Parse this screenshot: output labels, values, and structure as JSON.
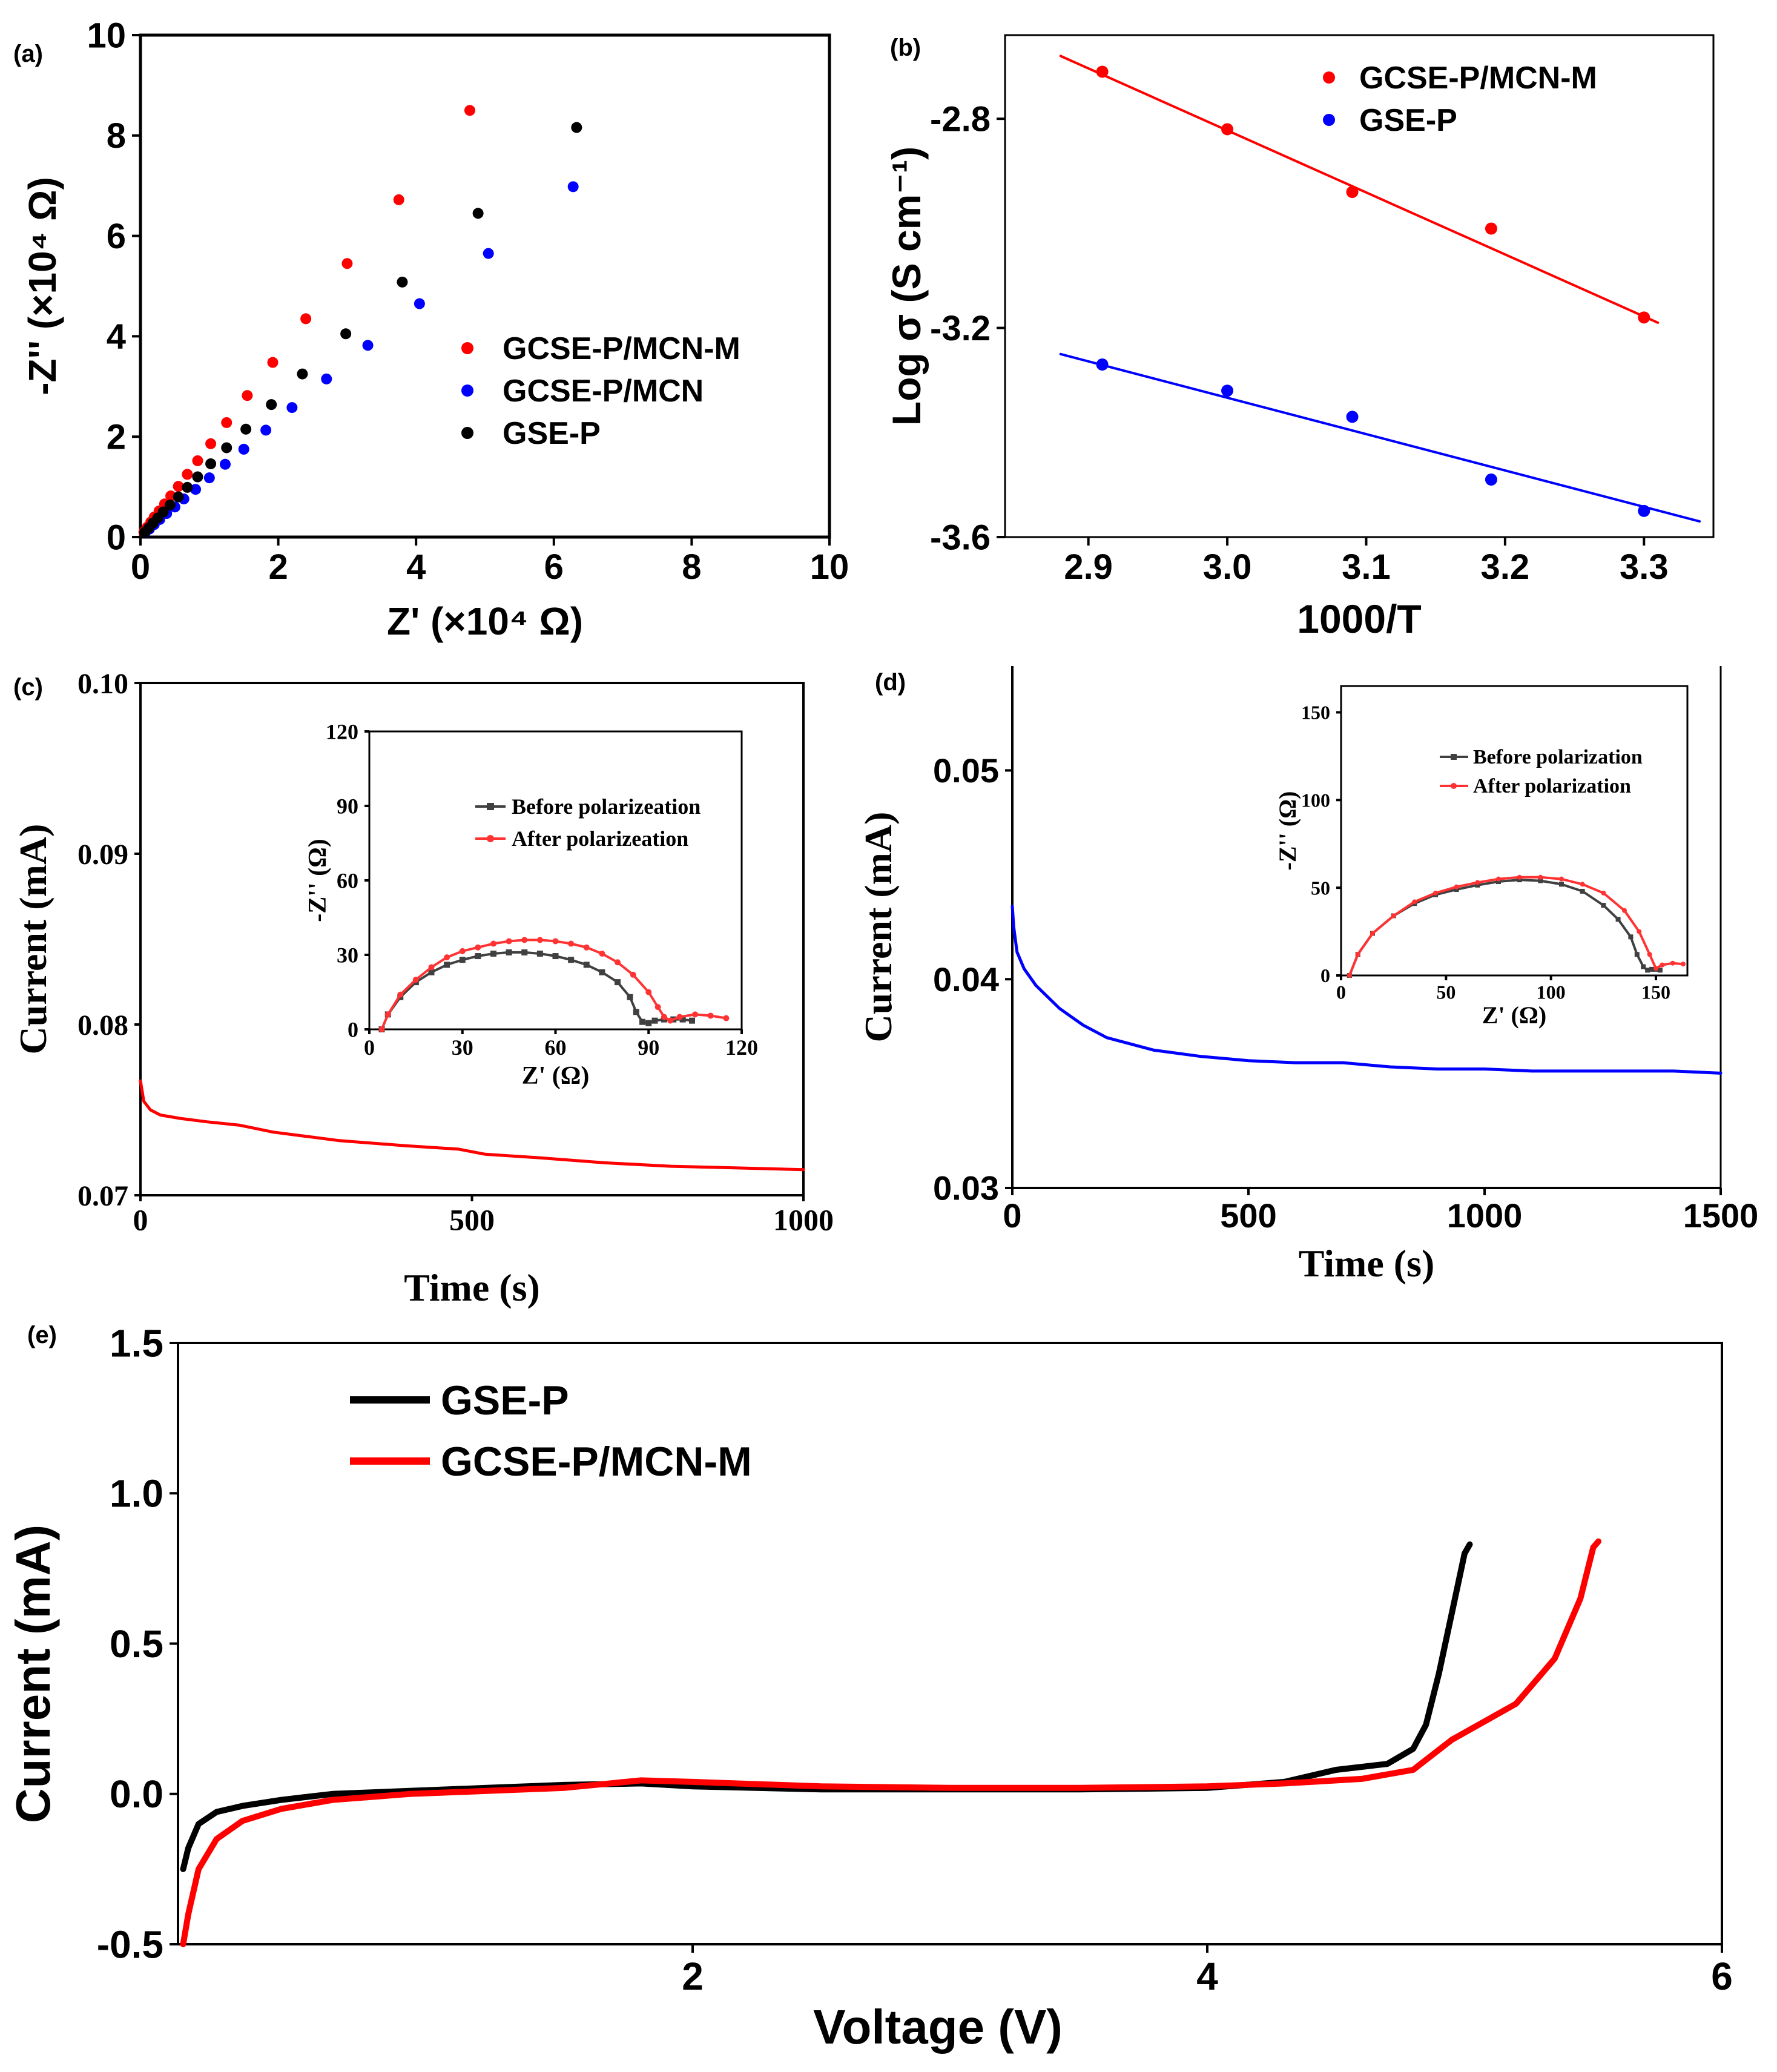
{
  "chart_data": [
    {
      "id": "a",
      "type": "scatter",
      "panel_label": "(a)",
      "xlabel": "Z' (×10⁴ Ω)",
      "ylabel": "-Z'' (×10⁴ Ω)",
      "xlim": [
        0,
        10
      ],
      "ylim": [
        0,
        10
      ],
      "xticks": [
        "0",
        "2",
        "4",
        "6",
        "8",
        "10"
      ],
      "yticks": [
        "0",
        "2",
        "4",
        "6",
        "8",
        "10"
      ],
      "legend": "center-right",
      "series": [
        {
          "name": "GCSE-P/MCN-M",
          "color": "#ff0000",
          "x": [
            0.05,
            0.1,
            0.15,
            0.2,
            0.27,
            0.35,
            0.44,
            0.55,
            0.68,
            0.83,
            1.02,
            1.25,
            1.55,
            1.92,
            2.4,
            3.0,
            3.75,
            4.78
          ],
          "y": [
            0.1,
            0.2,
            0.3,
            0.4,
            0.52,
            0.66,
            0.82,
            1.01,
            1.25,
            1.52,
            1.86,
            2.28,
            2.82,
            3.48,
            4.35,
            5.45,
            6.72,
            8.5
          ]
        },
        {
          "name": "GCSE-P/MCN",
          "color": "#0000ff",
          "x": [
            0.07,
            0.13,
            0.2,
            0.28,
            0.38,
            0.5,
            0.63,
            0.8,
            1.0,
            1.23,
            1.5,
            1.82,
            2.2,
            2.7,
            3.3,
            4.05,
            5.05,
            6.28
          ],
          "y": [
            0.09,
            0.16,
            0.25,
            0.35,
            0.47,
            0.6,
            0.76,
            0.95,
            1.18,
            1.45,
            1.75,
            2.13,
            2.58,
            3.15,
            3.82,
            4.65,
            5.65,
            6.98
          ]
        },
        {
          "name": "GSE-P",
          "color": "#000000",
          "x": [
            0.06,
            0.12,
            0.18,
            0.25,
            0.33,
            0.43,
            0.55,
            0.68,
            0.83,
            1.02,
            1.25,
            1.53,
            1.9,
            2.35,
            2.98,
            3.8,
            4.9,
            6.33
          ],
          "y": [
            0.09,
            0.18,
            0.28,
            0.38,
            0.5,
            0.64,
            0.8,
            0.99,
            1.2,
            1.46,
            1.78,
            2.15,
            2.64,
            3.25,
            4.05,
            5.08,
            6.45,
            8.16
          ]
        }
      ]
    },
    {
      "id": "b",
      "type": "scatter",
      "panel_label": "(b)",
      "xlabel": "1000/T",
      "ylabel": "Log σ (S cm⁻¹)",
      "xlim": [
        2.84,
        3.35
      ],
      "ylim": [
        -3.6,
        -2.64
      ],
      "xticks": [
        "2.9",
        "3.0",
        "3.1",
        "3.2",
        "3.3"
      ],
      "yticks": [
        "-2.8",
        "-3.2",
        "-3.6"
      ],
      "legend": "top-right",
      "series": [
        {
          "name": "GCSE-P/MCN-M",
          "color": "#ff0000",
          "x": [
            2.91,
            3.0,
            3.09,
            3.19,
            3.3
          ],
          "y": [
            -2.71,
            -2.82,
            -2.94,
            -3.01,
            -3.18
          ],
          "fit": {
            "x": [
              2.88,
              3.31
            ],
            "y": [
              -2.68,
              -3.19
            ]
          }
        },
        {
          "name": "GSE-P",
          "color": "#0000ff",
          "x": [
            2.91,
            3.0,
            3.09,
            3.19,
            3.3
          ],
          "y": [
            -3.27,
            -3.32,
            -3.37,
            -3.49,
            -3.55
          ],
          "fit": {
            "x": [
              2.88,
              3.34
            ],
            "y": [
              -3.25,
              -3.57
            ]
          }
        }
      ]
    },
    {
      "id": "c",
      "type": "line",
      "panel_label": "(c)",
      "xlabel": "Time (s)",
      "ylabel": "Current (mA)",
      "xlim": [
        0,
        1000
      ],
      "ylim": [
        0.07,
        0.1
      ],
      "xticks": [
        "0",
        "500",
        "1000"
      ],
      "yticks": [
        "0.07",
        "0.08",
        "0.09",
        "0.10"
      ],
      "series": [
        {
          "name": "current",
          "color": "#ff0000",
          "x": [
            0,
            5,
            15,
            30,
            60,
            100,
            150,
            200,
            300,
            400,
            480,
            520,
            600,
            700,
            800,
            900,
            1000
          ],
          "y": [
            0.0767,
            0.0755,
            0.075,
            0.0747,
            0.0745,
            0.0743,
            0.0741,
            0.0737,
            0.0732,
            0.0729,
            0.0727,
            0.0724,
            0.0722,
            0.0719,
            0.0717,
            0.0716,
            0.0715
          ]
        }
      ],
      "inset": {
        "xlabel": "Z' (Ω)",
        "ylabel": "-Z'' (Ω)",
        "xlim": [
          0,
          120
        ],
        "ylim": [
          0,
          120
        ],
        "xticks": [
          "0",
          "30",
          "60",
          "90",
          "120"
        ],
        "yticks": [
          "0",
          "30",
          "60",
          "90",
          "120"
        ],
        "series": [
          {
            "name": "Before polarizeation",
            "color": "#404040",
            "x": [
              4,
              6,
              10,
              15,
              20,
              25,
              30,
              35,
              40,
              45,
              50,
              55,
              60,
              65,
              70,
              75,
              80,
              84,
              86,
              88,
              90,
              92,
              95,
              98,
              101,
              104
            ],
            "y": [
              0,
              6,
              13,
              19,
              23,
              26,
              28,
              29.5,
              30.5,
              31,
              31,
              30.5,
              29.5,
              28,
              26,
              23,
              19,
              13,
              7,
              3,
              2.5,
              3.5,
              4,
              4,
              4,
              3.5
            ]
          },
          {
            "name": "After polarizeation",
            "color": "#ff3333",
            "x": [
              4,
              6,
              10,
              15,
              20,
              25,
              30,
              35,
              40,
              45,
              50,
              55,
              60,
              65,
              70,
              75,
              80,
              85,
              90,
              93,
              95,
              97,
              100,
              105,
              110,
              115
            ],
            "y": [
              0,
              6,
              14,
              20,
              25,
              29,
              31.5,
              33,
              34.5,
              35.5,
              36,
              36,
              35.5,
              34.5,
              33,
              30.5,
              27,
              22,
              15,
              9,
              5,
              3.5,
              5,
              6,
              5.5,
              4.5
            ]
          }
        ]
      }
    },
    {
      "id": "d",
      "type": "line",
      "panel_label": "(d)",
      "xlabel": "Time (s)",
      "ylabel": "Current (mA)",
      "xlim": [
        0,
        1500
      ],
      "ylim": [
        0.03,
        0.055
      ],
      "xticks": [
        "0",
        "500",
        "1000",
        "1500"
      ],
      "yticks": [
        "0.03",
        "0.04",
        "0.05"
      ],
      "series": [
        {
          "name": "current",
          "color": "#0000ff",
          "x": [
            0,
            3,
            10,
            25,
            50,
            100,
            150,
            200,
            300,
            400,
            500,
            600,
            700,
            800,
            900,
            1000,
            1100,
            1200,
            1300,
            1400,
            1500
          ],
          "y": [
            0.0435,
            0.0425,
            0.0413,
            0.0405,
            0.0397,
            0.0386,
            0.0378,
            0.0372,
            0.0366,
            0.0363,
            0.0361,
            0.036,
            0.036,
            0.0358,
            0.0357,
            0.0357,
            0.0356,
            0.0356,
            0.0356,
            0.0356,
            0.0355
          ]
        }
      ],
      "inset": {
        "xlabel": "Z' (Ω)",
        "ylabel": "-Z'' (Ω)",
        "xlim": [
          0,
          165
        ],
        "ylim": [
          0,
          165
        ],
        "xticks": [
          "0",
          "50",
          "100",
          "150"
        ],
        "yticks": [
          "0",
          "50",
          "100",
          "150"
        ],
        "series": [
          {
            "name": "Before polarization",
            "color": "#404040",
            "x": [
              4,
              8,
              15,
              25,
              35,
              45,
              55,
              65,
              75,
              85,
              95,
              105,
              115,
              125,
              132,
              138,
              141,
              144,
              146,
              148,
              150,
              152
            ],
            "y": [
              0,
              12,
              24,
              34,
              41,
              46,
              49,
              51.5,
              53.5,
              54.5,
              54,
              52,
              48,
              40,
              32,
              22,
              12,
              5,
              3,
              3.5,
              3.5,
              3
            ]
          },
          {
            "name": "After polarization",
            "color": "#ff3333",
            "x": [
              4,
              8,
              15,
              25,
              35,
              45,
              55,
              65,
              75,
              85,
              95,
              105,
              115,
              125,
              135,
              142,
              147,
              150,
              153,
              158,
              163
            ],
            "y": [
              0,
              12,
              24,
              34,
              42,
              47,
              50.5,
              53,
              55,
              56,
              56,
              55,
              52,
              47,
              37,
              25,
              12,
              4,
              6,
              7,
              6.5
            ]
          }
        ]
      }
    },
    {
      "id": "e",
      "type": "line",
      "panel_label": "(e)",
      "xlabel": "Voltage (V)",
      "ylabel": "Current (mA)",
      "xlim": [
        0,
        6
      ],
      "ylim": [
        -0.5,
        1.5
      ],
      "xticks": [
        "2",
        "4",
        "6"
      ],
      "yticks": [
        "-0.5",
        "0.0",
        "0.5",
        "1.0",
        "1.5"
      ],
      "legend": "top-left",
      "series": [
        {
          "name": "GSE-P",
          "color": "#000000",
          "x": [
            0.02,
            0.04,
            0.08,
            0.15,
            0.25,
            0.4,
            0.6,
            0.9,
            1.2,
            1.5,
            1.8,
            2.0,
            2.5,
            3.0,
            3.5,
            4.0,
            4.3,
            4.5,
            4.7,
            4.8,
            4.85,
            4.9,
            4.95,
            5.0,
            5.02
          ],
          "y": [
            -0.25,
            -0.18,
            -0.1,
            -0.06,
            -0.04,
            -0.02,
            0.0,
            0.01,
            0.02,
            0.03,
            0.035,
            0.025,
            0.015,
            0.015,
            0.015,
            0.02,
            0.04,
            0.08,
            0.1,
            0.15,
            0.23,
            0.4,
            0.6,
            0.8,
            0.83
          ]
        },
        {
          "name": "GCSE-P/MCN-M",
          "color": "#ff0000",
          "x": [
            0.02,
            0.04,
            0.08,
            0.15,
            0.25,
            0.4,
            0.6,
            0.9,
            1.2,
            1.5,
            1.8,
            2.0,
            2.5,
            3.0,
            3.5,
            4.0,
            4.3,
            4.6,
            4.8,
            4.95,
            5.2,
            5.35,
            5.45,
            5.5,
            5.52
          ],
          "y": [
            -0.5,
            -0.4,
            -0.25,
            -0.15,
            -0.09,
            -0.05,
            -0.02,
            0.0,
            0.01,
            0.02,
            0.045,
            0.04,
            0.025,
            0.02,
            0.02,
            0.025,
            0.035,
            0.05,
            0.08,
            0.18,
            0.3,
            0.45,
            0.65,
            0.82,
            0.84
          ]
        }
      ]
    }
  ]
}
